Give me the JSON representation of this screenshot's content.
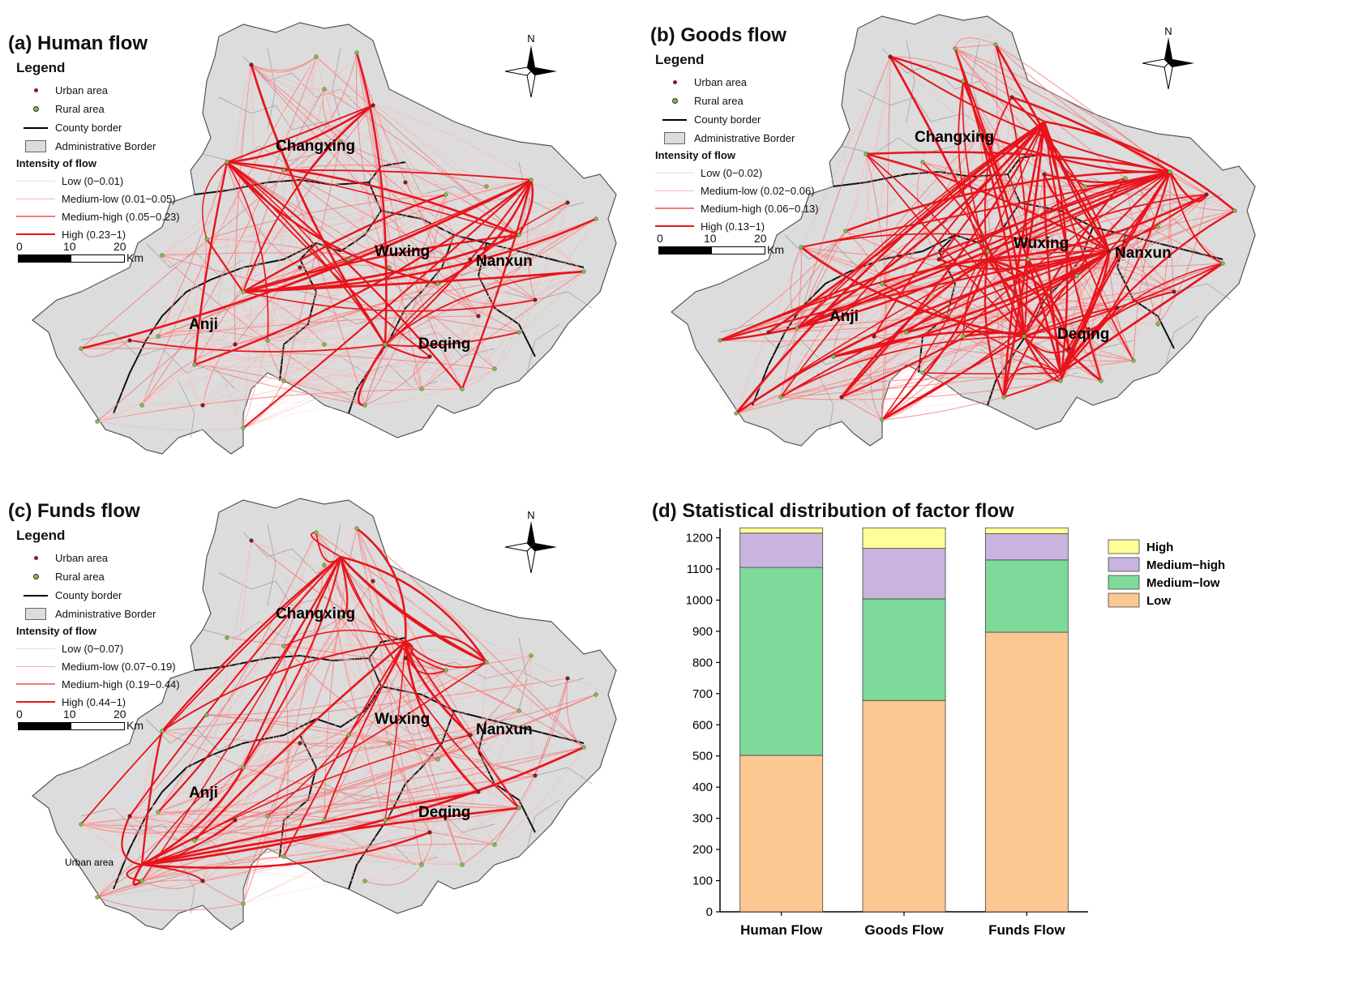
{
  "colors": {
    "map_fill": "#dcdcdc",
    "urban_dot": "#8b1a1a",
    "rural_dot": "#7bc043",
    "flow_high": "#e8141c",
    "flow_mid_high": "#f47a7a",
    "flow_mid_low": "#f8b4b4",
    "flow_low": "#fbd6d6",
    "bar_high": "#ffff99",
    "bar_medium_high": "#c8b4dc",
    "bar_medium_low": "#7fd99b",
    "bar_low": "#fcc790"
  },
  "legend_common": {
    "title": "Legend",
    "urban": "Urban area",
    "rural": "Rural area",
    "county": "County border",
    "admin": "Administrative Border",
    "intensity_title": "Intensity of flow",
    "scale_0": "0",
    "scale_10": "10",
    "scale_20": "20",
    "scale_unit": "Km",
    "north": "N"
  },
  "counties": {
    "changxing": "Changxing",
    "wuxing": "Wuxing",
    "nanxun": "Nanxun",
    "anji": "Anji",
    "deqing": "Deqing"
  },
  "panel_a": {
    "title": "(a) Human flow",
    "classes": [
      "Low (0−0.01)",
      "Medium-low (0.01−0.05)",
      "Medium-high (0.05−0.23)",
      "High (0.23−1)"
    ]
  },
  "panel_b": {
    "title": "(b) Goods flow",
    "classes": [
      "Low (0−0.02)",
      "Medium-low (0.02−0.06)",
      "Medium-high (0.06−0.13)",
      "High (0.13−1)"
    ]
  },
  "panel_c": {
    "title": "(c) Funds flow",
    "classes": [
      "Low (0−0.07)",
      "Medium-low (0.07−0.19)",
      "Medium-high (0.19−0.44)",
      "High (0.44−1)"
    ],
    "stray_label": "Urban area"
  },
  "panel_d": {
    "title": "(d) Statistical distribution of factor flow"
  },
  "chart_data": {
    "type": "bar",
    "stacked": true,
    "categories": [
      "Human Flow",
      "Goods Flow",
      "Funds Flow"
    ],
    "series": [
      {
        "name": "Low",
        "values": [
          502,
          678,
          897
        ]
      },
      {
        "name": "Medium−low",
        "values": [
          603,
          326,
          232
        ]
      },
      {
        "name": "Medium−high",
        "values": [
          110,
          162,
          84
        ]
      },
      {
        "name": "High",
        "values": [
          17,
          66,
          19
        ]
      }
    ],
    "ylim": [
      0,
      1230
    ],
    "yticks": [
      0,
      100,
      200,
      300,
      400,
      500,
      600,
      700,
      800,
      900,
      1000,
      1100,
      1200
    ],
    "legend_order": [
      "High",
      "Medium−high",
      "Medium−low",
      "Low"
    ],
    "legend_position": "top-right",
    "grid": false
  }
}
